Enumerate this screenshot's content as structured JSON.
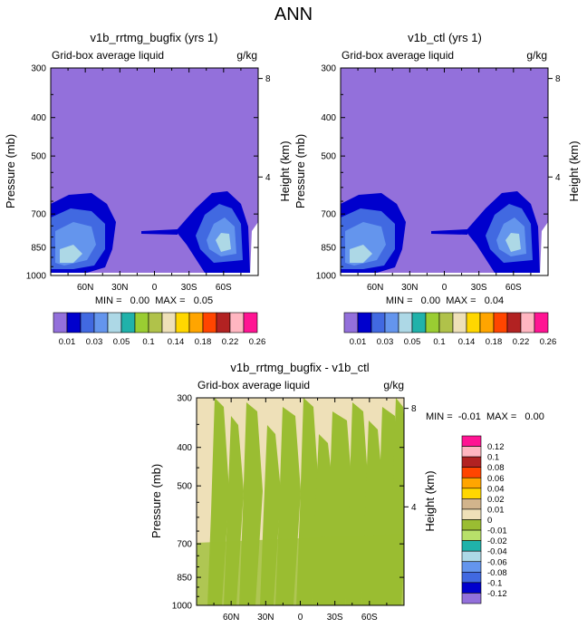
{
  "figure_title": "ANN",
  "colors": {
    "top_palette": [
      "#9370DB",
      "#0000CD",
      "#4169E1",
      "#6495ED",
      "#ADD8E6",
      "#20B2AA",
      "#9ACD32",
      "#B0C24A",
      "#EEE0B8",
      "#FFD700",
      "#FFA500",
      "#FF4500",
      "#B22222",
      "#FFB6C1",
      "#FF1493"
    ],
    "diff_palette": [
      "#9370DB",
      "#0000CD",
      "#4169E1",
      "#6495ED",
      "#ADD8E6",
      "#20B2AA",
      "#B8E06A",
      "#9ABD32",
      "#EEE0B8",
      "#D2B48C",
      "#FFD700",
      "#FFA500",
      "#FF4500",
      "#B22222",
      "#FFB6C1",
      "#FF1493"
    ]
  },
  "chart_data": [
    {
      "type": "heatmap",
      "name": "panel_a",
      "title": "v1b_rrtmg_bugfix (yrs 1)",
      "subtitle_left": "Grid-box average liquid",
      "subtitle_right": "g/kg",
      "ylabel": "Pressure (mb)",
      "ylabel_right": "Height (km)",
      "x_ticks": [
        "60N",
        "30N",
        "0",
        "30S",
        "60S"
      ],
      "x_tick_values": [
        60,
        30,
        0,
        -30,
        -60
      ],
      "xlim": [
        90,
        -90
      ],
      "y_ticks": [
        "300",
        "400",
        "500",
        "700",
        "850",
        "1000"
      ],
      "y_tick_values": [
        300,
        400,
        500,
        700,
        850,
        1000
      ],
      "ylim": [
        300,
        1000
      ],
      "right_ticks": [
        "8",
        "4"
      ],
      "right_tick_values": [
        8,
        4
      ],
      "stats_text": "MIN =   0.00  MAX =   0.05",
      "min": 0.0,
      "max": 0.05,
      "contour_levels": [
        "0.01",
        "0.03",
        "0.05",
        "0.1",
        "0.14",
        "0.18",
        "0.22",
        "0.26"
      ],
      "background_value": 0.005
    },
    {
      "type": "heatmap",
      "name": "panel_b",
      "title": "v1b_ctl (yrs 1)",
      "subtitle_left": "Grid-box average liquid",
      "subtitle_right": "g/kg",
      "ylabel": "Pressure (mb)",
      "ylabel_right": "Height (km)",
      "x_ticks": [
        "60N",
        "30N",
        "0",
        "30S",
        "60S"
      ],
      "x_tick_values": [
        60,
        30,
        0,
        -30,
        -60
      ],
      "xlim": [
        90,
        -90
      ],
      "y_ticks": [
        "300",
        "400",
        "500",
        "700",
        "850",
        "1000"
      ],
      "y_tick_values": [
        300,
        400,
        500,
        700,
        850,
        1000
      ],
      "ylim": [
        300,
        1000
      ],
      "right_ticks": [
        "8",
        "4"
      ],
      "right_tick_values": [
        8,
        4
      ],
      "stats_text": "MIN =   0.00  MAX =   0.04",
      "min": 0.0,
      "max": 0.04,
      "contour_levels": [
        "0.01",
        "0.03",
        "0.05",
        "0.1",
        "0.14",
        "0.18",
        "0.22",
        "0.26"
      ],
      "background_value": 0.005
    },
    {
      "type": "heatmap",
      "name": "panel_diff",
      "title": "v1b_rrtmg_bugfix - v1b_ctl",
      "subtitle_left": "Grid-box average liquid",
      "subtitle_right": "g/kg",
      "ylabel": "Pressure (mb)",
      "ylabel_right": "Height (km)",
      "x_ticks": [
        "60N",
        "30N",
        "0",
        "30S",
        "60S"
      ],
      "x_tick_values": [
        60,
        30,
        0,
        -30,
        -60
      ],
      "xlim": [
        90,
        -90
      ],
      "y_ticks": [
        "300",
        "400",
        "500",
        "700",
        "850",
        "1000"
      ],
      "y_tick_values": [
        300,
        400,
        500,
        700,
        850,
        1000
      ],
      "ylim": [
        300,
        1000
      ],
      "right_ticks": [
        "8",
        "4"
      ],
      "right_tick_values": [
        8,
        4
      ],
      "stats_text": "MIN =  -0.01  MAX =   0.00",
      "min": -0.01,
      "max": 0.0,
      "contour_levels": [
        "0.12",
        "0.1",
        "0.08",
        "0.06",
        "0.04",
        "0.02",
        "0.01",
        "0",
        "-0.01",
        "-0.02",
        "-0.04",
        "-0.06",
        "-0.08",
        "-0.1",
        "-0.12"
      ],
      "background_value": -0.005
    }
  ]
}
